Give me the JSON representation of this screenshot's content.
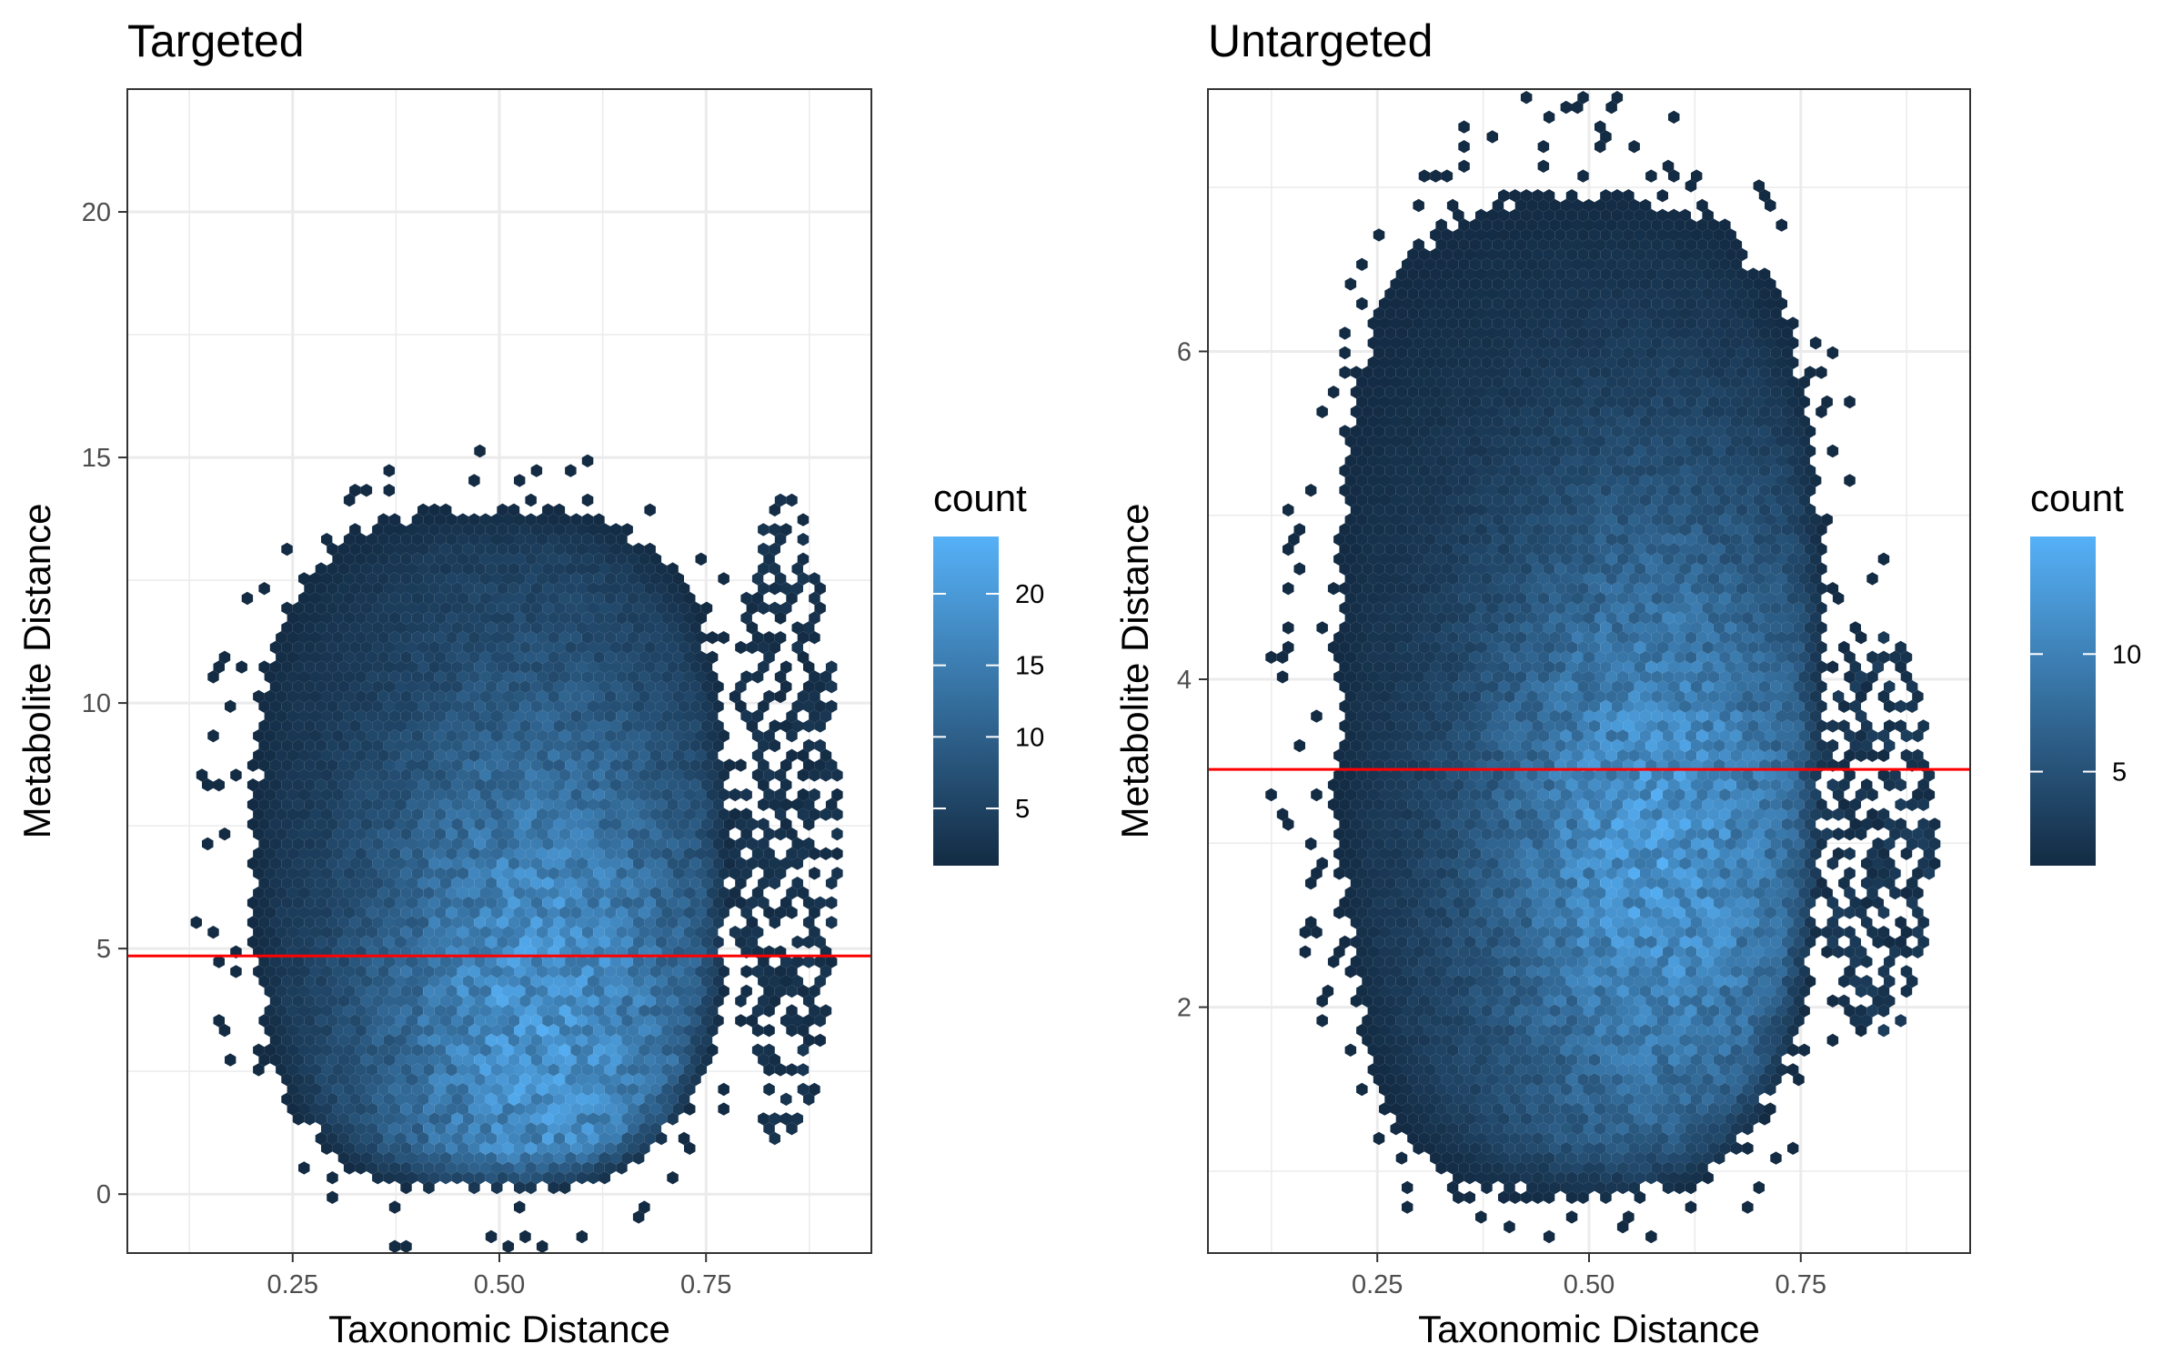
{
  "chart_data": [
    {
      "type": "hexbin",
      "title": "Targeted",
      "xlabel": "Taxonomic Distance",
      "ylabel": "Metabolite Distance",
      "xlim": [
        0.05,
        0.95
      ],
      "ylim": [
        -1.2,
        22.5
      ],
      "xticks": [
        0.25,
        0.5,
        0.75
      ],
      "xtick_labels": [
        "0.25",
        "0.50",
        "0.75"
      ],
      "yticks": [
        0,
        5,
        10,
        15,
        20
      ],
      "ytick_labels": [
        "0",
        "5",
        "10",
        "15",
        "20"
      ],
      "grid": true,
      "reference_line": {
        "y": 4.85,
        "color": "#ff0000"
      },
      "legend": {
        "title": "count",
        "position": "right",
        "range": [
          1,
          24
        ],
        "ticks": [
          5,
          10,
          15,
          20
        ],
        "tick_labels": [
          "5",
          "10",
          "15",
          "20"
        ]
      },
      "color_low": "#132b43",
      "color_high": "#56b1f7",
      "density": {
        "main_x": [
          0.2,
          0.78
        ],
        "main_y": [
          0.0,
          14.0
        ],
        "peak_x": 0.55,
        "peak_y": 3.5,
        "max_count": 24,
        "tail_x": [
          0.78,
          0.91
        ],
        "tail_y": [
          1.0,
          14.2
        ]
      }
    },
    {
      "type": "hexbin",
      "title": "Untargeted",
      "xlabel": "Taxonomic Distance",
      "ylabel": "Metabolite Distance",
      "xlim": [
        0.05,
        0.95
      ],
      "ylim": [
        0.5,
        7.6
      ],
      "xticks": [
        0.25,
        0.5,
        0.75
      ],
      "xtick_labels": [
        "0.25",
        "0.50",
        "0.75"
      ],
      "yticks": [
        2,
        4,
        6
      ],
      "ytick_labels": [
        "2",
        "4",
        "6"
      ],
      "grid": true,
      "reference_line": {
        "y": 3.45,
        "color": "#ff0000"
      },
      "legend": {
        "title": "count",
        "position": "right",
        "range": [
          1,
          15
        ],
        "ticks": [
          5,
          10
        ],
        "tick_labels": [
          "5",
          "10"
        ]
      },
      "color_low": "#132b43",
      "color_high": "#56b1f7",
      "density": {
        "main_x": [
          0.2,
          0.78
        ],
        "main_y": [
          0.8,
          7.0
        ],
        "peak_x": 0.58,
        "peak_y": 3.0,
        "max_count": 15,
        "tail_x": [
          0.77,
          0.91
        ],
        "tail_y": [
          1.8,
          4.3
        ]
      }
    }
  ]
}
